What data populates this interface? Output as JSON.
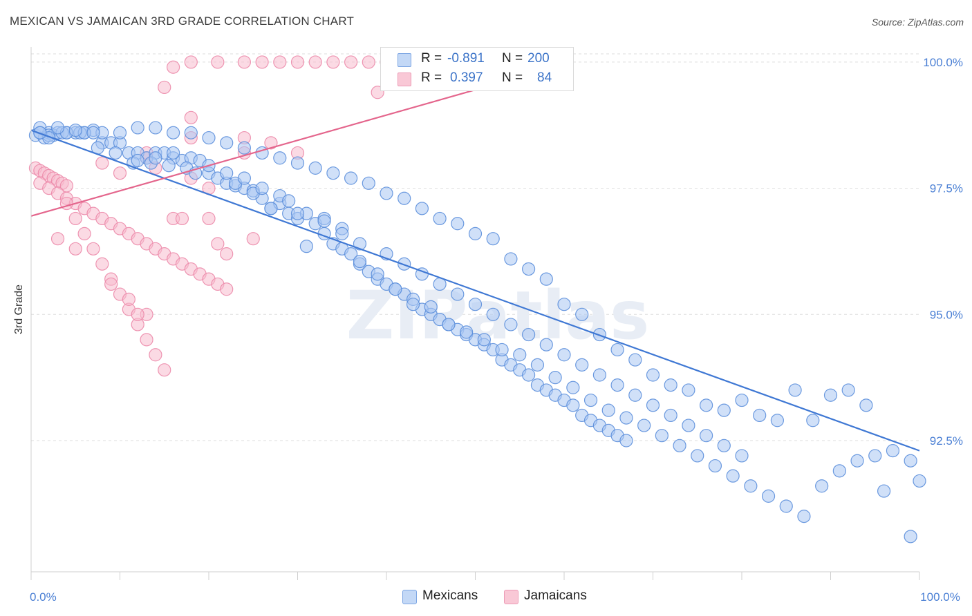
{
  "title": "MEXICAN VS JAMAICAN 3RD GRADE CORRELATION CHART",
  "source": "Source: ZipAtlas.com",
  "watermark": "ZIPatlas",
  "colors": {
    "mexicans_fill": "#a9c7f2",
    "mexicans_stroke": "#5c8fdc",
    "mexicans_line": "#3f78d4",
    "jamaicans_fill": "#f7bccd",
    "jamaicans_stroke": "#ec8aaa",
    "jamaicans_line": "#e4658c",
    "grid": "#dddddd",
    "tick_text": "#4a7fd4"
  },
  "legend": {
    "rows": [
      {
        "r_label": "R =",
        "r_value": "-0.891",
        "n_label": "N =",
        "n_value": "200"
      },
      {
        "r_label": "R =",
        "r_value": "0.397",
        "n_label": "N =",
        "n_value": "84"
      }
    ]
  },
  "bottom_legend": {
    "mexicans": "Mexicans",
    "jamaicans": "Jamaicans"
  },
  "chart_data": {
    "type": "scatter",
    "xlabel": "",
    "ylabel": "3rd Grade",
    "xlim": [
      0,
      100
    ],
    "ylim": [
      89.9,
      100.3
    ],
    "x_tick_labels": [
      {
        "value": 0,
        "label": "0.0%"
      },
      {
        "value": 100,
        "label": "100.0%"
      }
    ],
    "y_ticks": [
      {
        "value": 100.0,
        "label": "100.0%"
      },
      {
        "value": 97.5,
        "label": "97.5%"
      },
      {
        "value": 95.0,
        "label": "95.0%"
      },
      {
        "value": 92.5,
        "label": "92.5%"
      }
    ],
    "series": [
      {
        "name": "Mexicans",
        "regression": {
          "x": [
            0,
            100
          ],
          "y": [
            98.65,
            92.3
          ]
        },
        "points": [
          [
            0.5,
            98.55
          ],
          [
            1,
            98.7
          ],
          [
            1.5,
            98.5
          ],
          [
            2,
            98.6
          ],
          [
            2.5,
            98.55
          ],
          [
            3,
            98.6
          ],
          [
            4,
            98.6
          ],
          [
            5,
            98.6
          ],
          [
            6,
            98.6
          ],
          [
            7,
            98.65
          ],
          [
            2,
            98.55
          ],
          [
            1,
            98.6
          ],
          [
            3.5,
            98.6
          ],
          [
            5.5,
            98.6
          ],
          [
            8,
            98.4
          ],
          [
            9,
            98.4
          ],
          [
            10,
            98.4
          ],
          [
            11,
            98.2
          ],
          [
            12,
            98.2
          ],
          [
            13,
            98.1
          ],
          [
            14,
            98.2
          ],
          [
            15,
            98.2
          ],
          [
            16,
            98.1
          ],
          [
            17,
            98.05
          ],
          [
            18,
            98.1
          ],
          [
            19,
            98.05
          ],
          [
            7.5,
            98.3
          ],
          [
            9.5,
            98.2
          ],
          [
            11.5,
            98.0
          ],
          [
            13.5,
            98.0
          ],
          [
            15.5,
            97.95
          ],
          [
            17.5,
            97.9
          ],
          [
            18.5,
            97.8
          ],
          [
            20,
            97.8
          ],
          [
            21,
            97.7
          ],
          [
            22,
            97.6
          ],
          [
            23,
            97.55
          ],
          [
            24,
            97.5
          ],
          [
            25,
            97.45
          ],
          [
            26,
            97.3
          ],
          [
            27,
            97.1
          ],
          [
            28,
            97.2
          ],
          [
            29,
            97.0
          ],
          [
            30,
            96.9
          ],
          [
            31,
            97.0
          ],
          [
            32,
            96.8
          ],
          [
            33,
            96.6
          ],
          [
            34,
            96.4
          ],
          [
            35,
            96.3
          ],
          [
            36,
            96.2
          ],
          [
            37,
            96.0
          ],
          [
            38,
            95.85
          ],
          [
            39,
            95.7
          ],
          [
            40,
            95.6
          ],
          [
            41,
            95.5
          ],
          [
            42,
            95.4
          ],
          [
            43,
            95.3
          ],
          [
            44,
            95.1
          ],
          [
            45,
            95.0
          ],
          [
            46,
            94.9
          ],
          [
            47,
            94.8
          ],
          [
            48,
            94.7
          ],
          [
            49,
            94.6
          ],
          [
            50,
            94.5
          ],
          [
            51,
            94.4
          ],
          [
            52,
            94.3
          ],
          [
            53,
            94.1
          ],
          [
            54,
            94.0
          ],
          [
            55,
            93.9
          ],
          [
            56,
            93.8
          ],
          [
            57,
            93.6
          ],
          [
            58,
            93.5
          ],
          [
            59,
            93.4
          ],
          [
            60,
            93.3
          ],
          [
            61,
            93.2
          ],
          [
            62,
            93.0
          ],
          [
            63,
            92.9
          ],
          [
            64,
            92.8
          ],
          [
            65,
            92.7
          ],
          [
            66,
            92.6
          ],
          [
            67,
            92.5
          ],
          [
            23,
            97.6
          ],
          [
            25,
            97.4
          ],
          [
            27,
            97.1
          ],
          [
            30,
            97.0
          ],
          [
            33,
            96.9
          ],
          [
            35,
            96.7
          ],
          [
            37,
            96.4
          ],
          [
            40,
            96.2
          ],
          [
            42,
            96.0
          ],
          [
            44,
            95.8
          ],
          [
            46,
            95.6
          ],
          [
            48,
            95.4
          ],
          [
            50,
            95.2
          ],
          [
            52,
            95.0
          ],
          [
            54,
            94.8
          ],
          [
            56,
            94.6
          ],
          [
            58,
            94.4
          ],
          [
            60,
            94.2
          ],
          [
            62,
            94.0
          ],
          [
            64,
            93.8
          ],
          [
            66,
            93.6
          ],
          [
            68,
            93.4
          ],
          [
            70,
            93.2
          ],
          [
            72,
            93.0
          ],
          [
            74,
            92.8
          ],
          [
            76,
            92.6
          ],
          [
            78,
            92.4
          ],
          [
            80,
            92.2
          ],
          [
            12,
            98.05
          ],
          [
            14,
            98.1
          ],
          [
            16,
            98.2
          ],
          [
            20,
            97.95
          ],
          [
            22,
            97.8
          ],
          [
            24,
            97.7
          ],
          [
            26,
            97.5
          ],
          [
            28,
            97.35
          ],
          [
            29,
            97.25
          ],
          [
            31,
            96.35
          ],
          [
            33,
            96.85
          ],
          [
            35,
            96.6
          ],
          [
            37,
            96.05
          ],
          [
            39,
            95.8
          ],
          [
            41,
            95.5
          ],
          [
            43,
            95.2
          ],
          [
            45,
            95.15
          ],
          [
            47,
            94.8
          ],
          [
            49,
            94.65
          ],
          [
            51,
            94.5
          ],
          [
            53,
            94.3
          ],
          [
            55,
            94.2
          ],
          [
            57,
            94.0
          ],
          [
            59,
            93.75
          ],
          [
            61,
            93.55
          ],
          [
            63,
            93.3
          ],
          [
            65,
            93.1
          ],
          [
            67,
            92.95
          ],
          [
            69,
            92.8
          ],
          [
            71,
            92.6
          ],
          [
            73,
            92.4
          ],
          [
            75,
            92.2
          ],
          [
            77,
            92.0
          ],
          [
            79,
            91.8
          ],
          [
            81,
            91.6
          ],
          [
            83,
            91.4
          ],
          [
            85,
            91.2
          ],
          [
            87,
            91.0
          ],
          [
            89,
            91.6
          ],
          [
            91,
            91.9
          ],
          [
            93,
            92.1
          ],
          [
            95,
            92.2
          ],
          [
            97,
            92.3
          ],
          [
            99,
            92.1
          ],
          [
            100,
            91.7
          ],
          [
            99,
            90.6
          ],
          [
            96,
            91.5
          ],
          [
            94,
            93.2
          ],
          [
            92,
            93.5
          ],
          [
            90,
            93.4
          ],
          [
            88,
            92.9
          ],
          [
            86,
            93.5
          ],
          [
            84,
            92.9
          ],
          [
            82,
            93.0
          ],
          [
            80,
            93.3
          ],
          [
            78,
            93.1
          ],
          [
            76,
            93.2
          ],
          [
            74,
            93.5
          ],
          [
            72,
            93.6
          ],
          [
            70,
            93.8
          ],
          [
            68,
            94.1
          ],
          [
            66,
            94.3
          ],
          [
            64,
            94.6
          ],
          [
            62,
            95.0
          ],
          [
            60,
            95.2
          ],
          [
            58,
            95.7
          ],
          [
            56,
            95.9
          ],
          [
            54,
            96.1
          ],
          [
            52,
            96.5
          ],
          [
            50,
            96.6
          ],
          [
            48,
            96.8
          ],
          [
            46,
            96.9
          ],
          [
            44,
            97.1
          ],
          [
            42,
            97.3
          ],
          [
            40,
            97.4
          ],
          [
            38,
            97.6
          ],
          [
            36,
            97.7
          ],
          [
            34,
            97.8
          ],
          [
            32,
            97.9
          ],
          [
            30,
            98.0
          ],
          [
            28,
            98.1
          ],
          [
            26,
            98.2
          ],
          [
            24,
            98.3
          ],
          [
            22,
            98.4
          ],
          [
            20,
            98.5
          ],
          [
            18,
            98.6
          ],
          [
            16,
            98.6
          ],
          [
            14,
            98.7
          ],
          [
            12,
            98.7
          ],
          [
            10,
            98.6
          ],
          [
            8,
            98.6
          ],
          [
            6,
            98.6
          ],
          [
            4,
            98.6
          ],
          [
            2,
            98.5
          ],
          [
            1,
            98.6
          ],
          [
            3,
            98.7
          ],
          [
            5,
            98.65
          ],
          [
            7,
            98.6
          ]
        ]
      },
      {
        "name": "Jamaicans",
        "regression": {
          "x": [
            0,
            50
          ],
          "y": [
            96.95,
            99.45
          ]
        },
        "points": [
          [
            0.5,
            97.9
          ],
          [
            1,
            97.85
          ],
          [
            1.5,
            97.8
          ],
          [
            2,
            97.75
          ],
          [
            2.5,
            97.7
          ],
          [
            3,
            97.65
          ],
          [
            3.5,
            97.6
          ],
          [
            4,
            97.55
          ],
          [
            1,
            97.6
          ],
          [
            2,
            97.5
          ],
          [
            3,
            97.4
          ],
          [
            4,
            97.3
          ],
          [
            5,
            97.2
          ],
          [
            6,
            97.1
          ],
          [
            7,
            97.0
          ],
          [
            8,
            96.9
          ],
          [
            9,
            96.8
          ],
          [
            10,
            96.7
          ],
          [
            11,
            96.6
          ],
          [
            12,
            96.5
          ],
          [
            13,
            96.4
          ],
          [
            14,
            96.3
          ],
          [
            15,
            96.2
          ],
          [
            16,
            96.1
          ],
          [
            17,
            96.0
          ],
          [
            18,
            95.9
          ],
          [
            19,
            95.8
          ],
          [
            20,
            95.7
          ],
          [
            21,
            95.6
          ],
          [
            22,
            95.5
          ],
          [
            4,
            97.2
          ],
          [
            5,
            96.9
          ],
          [
            6,
            96.6
          ],
          [
            7,
            96.3
          ],
          [
            8,
            96.0
          ],
          [
            9,
            95.7
          ],
          [
            10,
            95.4
          ],
          [
            11,
            95.1
          ],
          [
            12,
            94.8
          ],
          [
            13,
            94.5
          ],
          [
            14,
            94.2
          ],
          [
            15,
            93.9
          ],
          [
            3,
            96.5
          ],
          [
            5,
            96.3
          ],
          [
            9,
            95.6
          ],
          [
            11,
            95.3
          ],
          [
            13,
            95.0
          ],
          [
            12,
            95.0
          ],
          [
            16,
            96.9
          ],
          [
            17,
            96.9
          ],
          [
            20,
            96.9
          ],
          [
            21,
            96.4
          ],
          [
            22,
            96.2
          ],
          [
            25,
            96.5
          ],
          [
            15,
            99.5
          ],
          [
            16,
            99.9
          ],
          [
            18,
            100.0
          ],
          [
            21,
            100.0
          ],
          [
            24,
            100.0
          ],
          [
            26,
            100.0
          ],
          [
            28,
            100.0
          ],
          [
            30,
            100.0
          ],
          [
            32,
            100.0
          ],
          [
            34,
            100.0
          ],
          [
            36,
            100.0
          ],
          [
            38,
            100.0
          ],
          [
            40,
            100.0
          ],
          [
            42,
            100.0
          ],
          [
            44,
            100.0
          ],
          [
            46,
            100.0
          ],
          [
            48,
            100.0
          ],
          [
            50,
            100.0
          ],
          [
            39,
            99.4
          ],
          [
            18,
            98.9
          ],
          [
            18,
            98.5
          ],
          [
            24,
            98.2
          ],
          [
            24,
            98.5
          ],
          [
            27,
            98.4
          ],
          [
            30,
            98.2
          ],
          [
            13,
            98.1
          ],
          [
            13,
            98.2
          ],
          [
            8,
            98.0
          ],
          [
            10,
            97.8
          ],
          [
            14,
            97.9
          ],
          [
            18,
            97.7
          ],
          [
            20,
            97.5
          ]
        ]
      }
    ]
  }
}
